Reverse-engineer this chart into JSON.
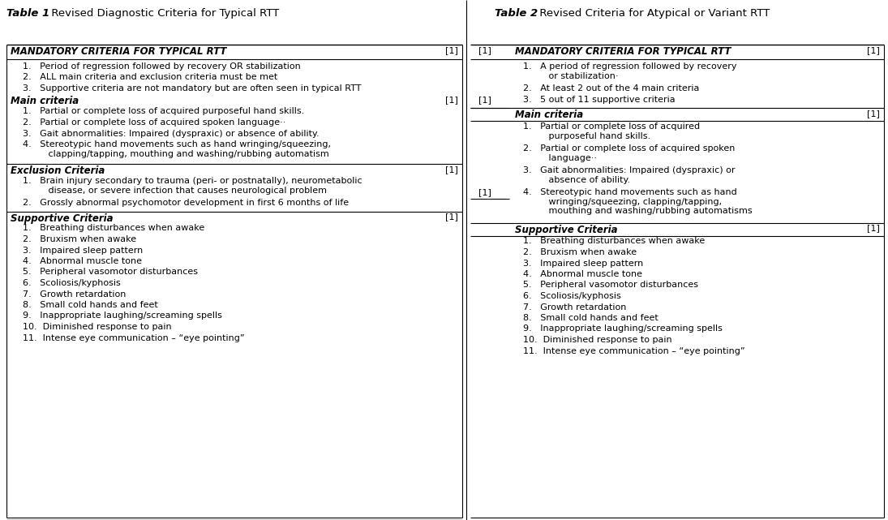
{
  "bg_color": "#ffffff",
  "figsize": [
    10.95,
    6.41
  ],
  "dpi": 100,
  "text_color": "#000000",
  "line_color": "#000000",
  "t1_title_italic_bold": "Table 1",
  "t1_title_normal": ". Revised Diagnostic Criteria for Typical RTT",
  "t2_title_italic_bold": "Table 2",
  "t2_title_normal": ". Revised Criteria for Atypical or Variant RTT",
  "t1_header": "MANDATORY CRITERIA FOR TYPICAL RTT",
  "t2_header": "MANDATORY CRITERIA FOR TYPICAL RTT",
  "t1_mandatory": [
    "1.   Period of regression followed by recovery OR stabilization",
    "2.   ALL main criteria and exclusion criteria must be met",
    "3.   Supportive criteria are not mandatory but are often seen in typical RTT"
  ],
  "t1_main_header": "Main criteria",
  "t1_main_items": [
    "1.   Partial or complete loss of acquired purposeful hand skills.",
    "2.   Partial or complete loss of acquired spoken language··",
    "3.   Gait abnormalities: Impaired (dyspraxic) or absence of ability.",
    "4.   Stereotypic hand movements such as hand wringing/squeezing,\n         clapping/tapping, mouthing and washing/rubbing automatism"
  ],
  "t1_excl_header": "Exclusion Criteria",
  "t1_excl_items": [
    "1.   Brain injury secondary to trauma (peri- or postnatally), neurometabolic\n         disease, or severe infection that causes neurological problem",
    "2.   Grossly abnormal psychomotor development in first 6 months of life"
  ],
  "t1_supp_header": "Supportive Criteria",
  "t1_supp_items": [
    "1.   Breathing disturbances when awake",
    "2.   Bruxism when awake",
    "3.   Impaired sleep pattern",
    "4.   Abnormal muscle tone",
    "5.   Peripheral vasomotor disturbances",
    "6.   Scoliosis/kyphosis",
    "7.   Growth retardation",
    "8.   Small cold hands and feet",
    "9.   Inappropriate laughing/screaming spells",
    "10.  Diminished response to pain",
    "11.  Intense eye communication – “eye pointing”"
  ],
  "t2_mandatory": [
    "1.   A period of regression followed by recovery\n         or stabilization·",
    "2.   At least 2 out of the 4 main criteria",
    "3.   5 out of 11 supportive criteria"
  ],
  "t2_main_header": "Main criteria",
  "t2_main_items": [
    "1.   Partial or complete loss of acquired\n         purposeful hand skills.",
    "2.   Partial or complete loss of acquired spoken\n         language··",
    "3.   Gait abnormalities: Impaired (dyspraxic) or\n         absence of ability.",
    "4.   Stereotypic hand movements such as hand\n         wringing/squeezing, clapping/tapping,\n         mouthing and washing/rubbing automatisms"
  ],
  "t2_supp_header": "Supportive Criteria",
  "t2_supp_items": [
    "1.   Breathing disturbances when awake",
    "2.   Bruxism when awake",
    "3.   Impaired sleep pattern",
    "4.   Abnormal muscle tone",
    "5.   Peripheral vasomotor disturbances",
    "6.   Scoliosis/kyphosis",
    "7.   Growth retardation",
    "8.   Small cold hands and feet",
    "9.   Inappropriate laughing/screaming spells",
    "10.  Diminished response to pain",
    "11.  Intense eye communication – “eye pointing”"
  ]
}
